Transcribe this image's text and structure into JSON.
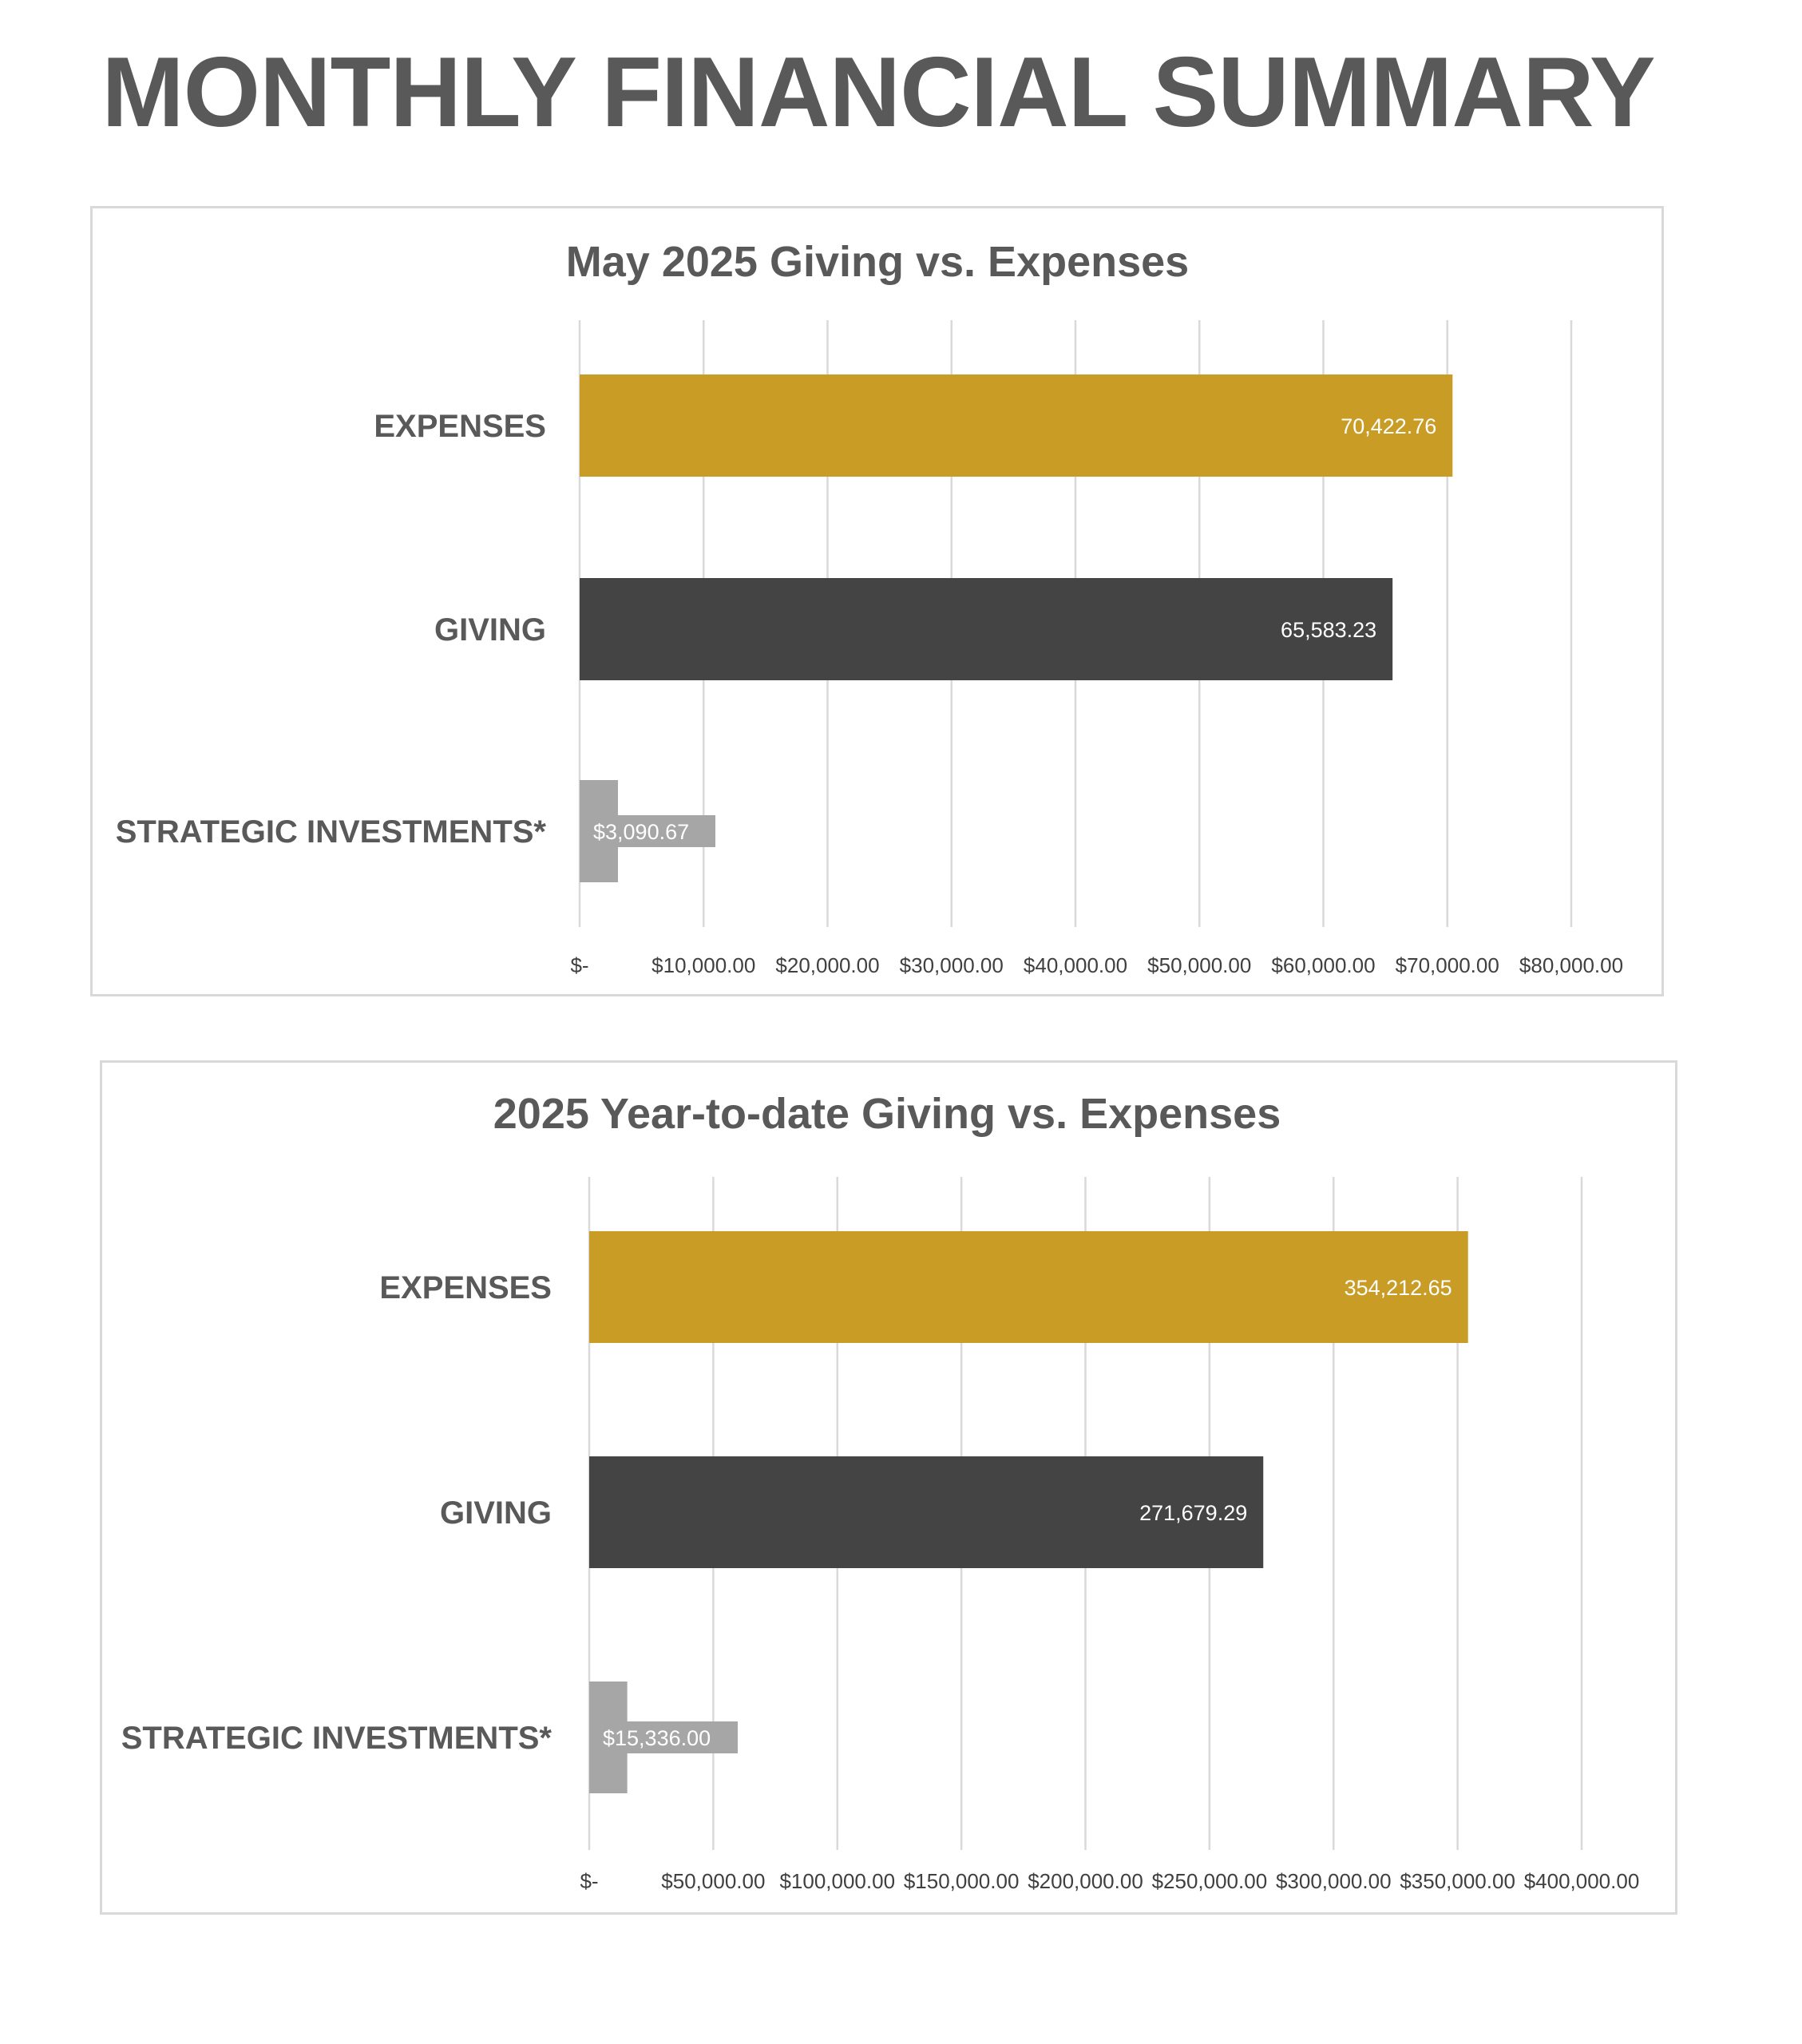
{
  "page": {
    "title": "MONTHLY FINANCIAL SUMMARY"
  },
  "colors": {
    "expenses": "#C99C25",
    "giving": "#444444",
    "strategic": "#A6A6A6",
    "text": "#595959",
    "grid": "#D9D9D9"
  },
  "chart_data": [
    {
      "type": "bar",
      "orientation": "horizontal",
      "title": "May 2025 Giving vs. Expenses",
      "categories": [
        "EXPENSES",
        "GIVING",
        "STRATEGIC INVESTMENTS*"
      ],
      "values": [
        70422.76,
        65583.23,
        3090.67
      ],
      "data_labels": [
        "70,422.76",
        "65,583.23",
        "$3,090.67"
      ],
      "xlim": [
        0,
        80000
      ],
      "ticks": [
        0,
        10000,
        20000,
        30000,
        40000,
        50000,
        60000,
        70000,
        80000
      ],
      "tick_labels": [
        "$-",
        "$10,000.00",
        "$20,000.00",
        "$30,000.00",
        "$40,000.00",
        "$50,000.00",
        "$60,000.00",
        "$70,000.00",
        "$80,000.00"
      ],
      "grid": true,
      "legend": "none"
    },
    {
      "type": "bar",
      "orientation": "horizontal",
      "title": "2025 Year-to-date Giving vs. Expenses",
      "categories": [
        "EXPENSES",
        "GIVING",
        "STRATEGIC INVESTMENTS*"
      ],
      "values": [
        354212.65,
        271679.29,
        15336.0
      ],
      "data_labels": [
        "354,212.65",
        "271,679.29",
        "$15,336.00"
      ],
      "xlim": [
        0,
        400000
      ],
      "ticks": [
        0,
        50000,
        100000,
        150000,
        200000,
        250000,
        300000,
        350000,
        400000
      ],
      "tick_labels": [
        "$-",
        "$50,000.00",
        "$100,000.00",
        "$150,000.00",
        "$200,000.00",
        "$250,000.00",
        "$300,000.00",
        "$350,000.00",
        "$400,000.00"
      ],
      "grid": true,
      "legend": "none"
    }
  ]
}
